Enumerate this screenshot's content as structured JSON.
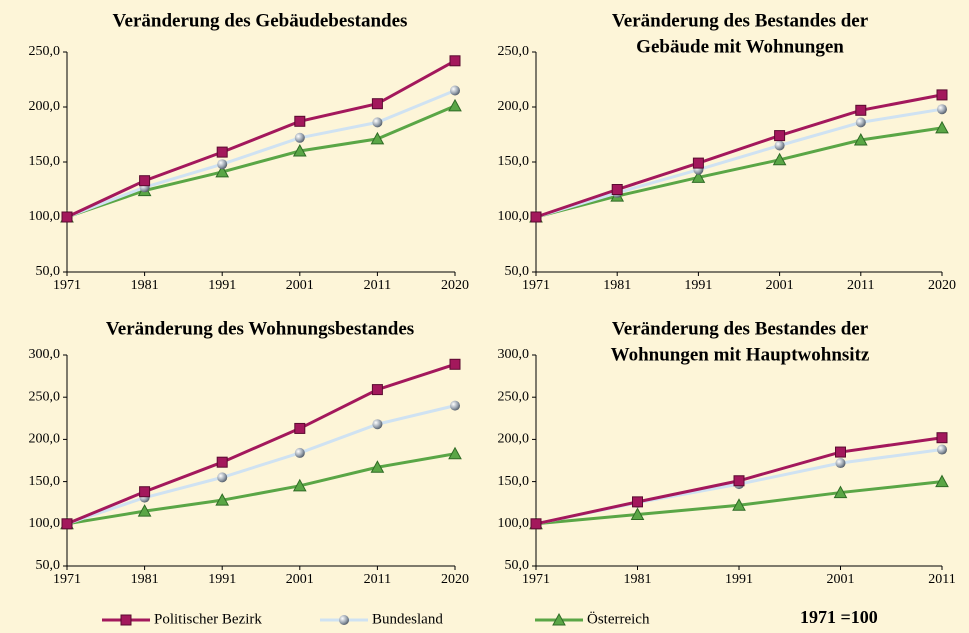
{
  "legend": {
    "series": [
      {
        "name": "Politischer Bezirk",
        "color": "#a3185c"
      },
      {
        "name": "Bundesland",
        "color": "#cfe2f2"
      },
      {
        "name": "Österreich",
        "color": "#5aa646"
      }
    ]
  },
  "note": "1971 =100",
  "chart_data": [
    {
      "type": "line",
      "title": [
        "Veränderung des Gebäudebestandes"
      ],
      "categories": [
        "1971",
        "1981",
        "1991",
        "2001",
        "2011",
        "2020"
      ],
      "series": [
        {
          "values": [
            100,
            133,
            159,
            187,
            203,
            242
          ]
        },
        {
          "values": [
            100,
            127,
            148,
            172,
            186,
            215
          ]
        },
        {
          "values": [
            100,
            124,
            141,
            160,
            171,
            201
          ]
        }
      ],
      "ylim": [
        50,
        250
      ],
      "yticks": [
        {
          "value": 50,
          "label": "50,0"
        },
        {
          "value": 100,
          "label": "100,0"
        },
        {
          "value": 150,
          "label": "150,0"
        },
        {
          "value": 200,
          "label": "200,0"
        },
        {
          "value": 250,
          "label": "250,0"
        }
      ]
    },
    {
      "type": "line",
      "title": [
        "Veränderung des Bestandes der",
        "Gebäude mit Wohnungen"
      ],
      "categories": [
        "1971",
        "1981",
        "1991",
        "2001",
        "2011",
        "2020"
      ],
      "series": [
        {
          "values": [
            100,
            125,
            149,
            174,
            197,
            211
          ]
        },
        {
          "values": [
            100,
            122,
            143,
            165,
            186,
            198
          ]
        },
        {
          "values": [
            100,
            119,
            136,
            152,
            170,
            181
          ]
        }
      ],
      "ylim": [
        50,
        250
      ],
      "yticks": [
        {
          "value": 50,
          "label": "50,0"
        },
        {
          "value": 100,
          "label": "100,0"
        },
        {
          "value": 150,
          "label": "150,0"
        },
        {
          "value": 200,
          "label": "200,0"
        },
        {
          "value": 250,
          "label": "250,0"
        }
      ]
    },
    {
      "type": "line",
      "title": [
        "Veränderung des Wohnungsbestandes"
      ],
      "categories": [
        "1971",
        "1981",
        "1991",
        "2001",
        "2011",
        "2020"
      ],
      "series": [
        {
          "values": [
            100,
            138,
            173,
            213,
            259,
            289
          ]
        },
        {
          "values": [
            100,
            131,
            155,
            184,
            218,
            240
          ]
        },
        {
          "values": [
            100,
            115,
            128,
            145,
            167,
            183
          ]
        }
      ],
      "ylim": [
        50,
        300
      ],
      "yticks": [
        {
          "value": 50,
          "label": "50,0"
        },
        {
          "value": 100,
          "label": "100,0"
        },
        {
          "value": 150,
          "label": "150,0"
        },
        {
          "value": 200,
          "label": "200,0"
        },
        {
          "value": 250,
          "label": "250,0"
        },
        {
          "value": 300,
          "label": "300,0"
        }
      ]
    },
    {
      "type": "line",
      "title": [
        "Veränderung des Bestandes der",
        "Wohnungen mit Hauptwohnsitz"
      ],
      "categories": [
        "1971",
        "1981",
        "1991",
        "2001",
        "2011"
      ],
      "series": [
        {
          "values": [
            100,
            126,
            151,
            185,
            202
          ]
        },
        {
          "values": [
            100,
            125,
            147,
            172,
            188
          ]
        },
        {
          "values": [
            100,
            111,
            122,
            137,
            150
          ]
        }
      ],
      "ylim": [
        50,
        300
      ],
      "yticks": [
        {
          "value": 50,
          "label": "50,0"
        },
        {
          "value": 100,
          "label": "100,0"
        },
        {
          "value": 150,
          "label": "150,0"
        },
        {
          "value": 200,
          "label": "200,0"
        },
        {
          "value": 250,
          "label": "250,0"
        },
        {
          "value": 300,
          "label": "300,0"
        }
      ]
    }
  ]
}
